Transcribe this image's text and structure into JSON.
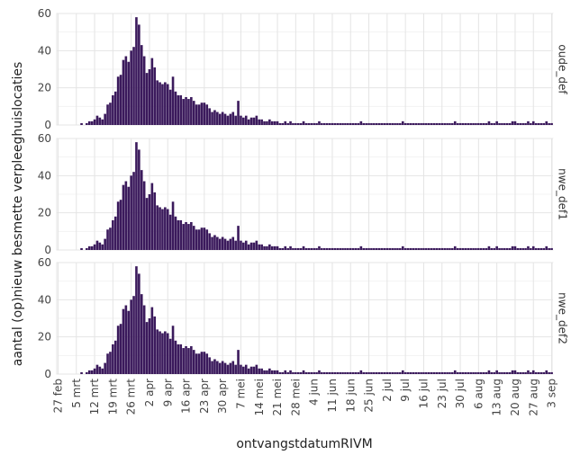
{
  "chart_data": {
    "type": "bar",
    "title": "",
    "xlabel": "ontvangstdatumRIVM",
    "ylabel": "aantal (op)nieuw besmette verpleeghuislocaties",
    "ylim": [
      0,
      60
    ],
    "yticks": [
      "0",
      "20",
      "40",
      "60"
    ],
    "x_start": "2020-02-27",
    "x_end": "2020-09-03",
    "xtick_labels": [
      "27 feb",
      "5 mrt",
      "12 mrt",
      "19 mrt",
      "26 mrt",
      "2 apr",
      "9 apr",
      "16 apr",
      "23 apr",
      "30 apr",
      "7 mei",
      "14 mei",
      "21 mei",
      "28 mei",
      "4 jun",
      "11 jun",
      "18 jun",
      "25 jun",
      "2 jul",
      "9 jul",
      "16 jul",
      "23 jul",
      "30 jul",
      "6 aug",
      "13 aug",
      "20 aug",
      "27 aug",
      "3 sep"
    ],
    "bar_color": "#3b1a5c",
    "grid": true,
    "panels": [
      {
        "name": "oude_def",
        "values": [
          0,
          0,
          0,
          0,
          0,
          0,
          0,
          0,
          0,
          1,
          0,
          1,
          2,
          2,
          3,
          5,
          4,
          3,
          6,
          11,
          12,
          16,
          18,
          26,
          27,
          35,
          37,
          34,
          40,
          42,
          58,
          54,
          43,
          37,
          28,
          30,
          36,
          31,
          24,
          23,
          22,
          23,
          22,
          19,
          26,
          18,
          16,
          16,
          14,
          15,
          14,
          15,
          13,
          11,
          11,
          12,
          12,
          11,
          9,
          7,
          8,
          7,
          6,
          7,
          6,
          5,
          6,
          7,
          5,
          13,
          5,
          4,
          5,
          3,
          4,
          4,
          5,
          3,
          3,
          2,
          2,
          3,
          2,
          2,
          2,
          1,
          1,
          2,
          1,
          2,
          1,
          1,
          1,
          1,
          2,
          1,
          1,
          1,
          1,
          1,
          2,
          1,
          1,
          1,
          1,
          1,
          1,
          1,
          1,
          1,
          1,
          1,
          1,
          1,
          1,
          1,
          2,
          1,
          1,
          1,
          1,
          1,
          1,
          1,
          1,
          1,
          1,
          1,
          1,
          1,
          1,
          1,
          2,
          1,
          1,
          1,
          1,
          1,
          1,
          1,
          1,
          1,
          1,
          1,
          1,
          1,
          1,
          1,
          1,
          1,
          1,
          1,
          2,
          1,
          1,
          1,
          1,
          1,
          1,
          1,
          1,
          1,
          1,
          1,
          1,
          2,
          1,
          1,
          2,
          1,
          1,
          1,
          1,
          1,
          2,
          2,
          1,
          1,
          1,
          1,
          2,
          1,
          2,
          1,
          1,
          1,
          1,
          2,
          1,
          1,
          1,
          1,
          2,
          1,
          1
        ]
      },
      {
        "name": "nwe_def1",
        "values": [
          0,
          0,
          0,
          0,
          0,
          0,
          0,
          0,
          0,
          1,
          0,
          1,
          2,
          2,
          3,
          5,
          4,
          3,
          6,
          11,
          12,
          16,
          18,
          26,
          27,
          35,
          37,
          34,
          40,
          42,
          58,
          54,
          43,
          37,
          28,
          30,
          36,
          31,
          24,
          23,
          22,
          23,
          22,
          19,
          26,
          18,
          16,
          16,
          14,
          15,
          14,
          15,
          13,
          11,
          11,
          12,
          12,
          11,
          9,
          7,
          8,
          7,
          6,
          7,
          6,
          5,
          6,
          7,
          5,
          13,
          5,
          4,
          5,
          3,
          4,
          4,
          5,
          3,
          3,
          2,
          2,
          3,
          2,
          2,
          2,
          1,
          1,
          2,
          1,
          2,
          1,
          1,
          1,
          1,
          2,
          1,
          1,
          1,
          1,
          1,
          2,
          1,
          1,
          1,
          1,
          1,
          1,
          1,
          1,
          1,
          1,
          1,
          1,
          1,
          1,
          1,
          2,
          1,
          1,
          1,
          1,
          1,
          1,
          1,
          1,
          1,
          1,
          1,
          1,
          1,
          1,
          1,
          2,
          1,
          1,
          1,
          1,
          1,
          1,
          1,
          1,
          1,
          1,
          1,
          1,
          1,
          1,
          1,
          1,
          1,
          1,
          1,
          2,
          1,
          1,
          1,
          1,
          1,
          1,
          1,
          1,
          1,
          1,
          1,
          1,
          2,
          1,
          1,
          2,
          1,
          1,
          1,
          1,
          1,
          2,
          2,
          1,
          1,
          1,
          1,
          2,
          1,
          2,
          1,
          1,
          1,
          1,
          2,
          1,
          1,
          1,
          1,
          4,
          1,
          1
        ]
      },
      {
        "name": "nwe_def2",
        "values": [
          0,
          0,
          0,
          0,
          0,
          0,
          0,
          0,
          0,
          1,
          0,
          1,
          2,
          2,
          3,
          5,
          4,
          3,
          6,
          11,
          12,
          16,
          18,
          26,
          27,
          35,
          37,
          34,
          40,
          42,
          58,
          54,
          43,
          37,
          28,
          30,
          36,
          31,
          24,
          23,
          22,
          23,
          22,
          19,
          26,
          18,
          16,
          16,
          14,
          15,
          14,
          15,
          13,
          11,
          11,
          12,
          12,
          11,
          9,
          7,
          8,
          7,
          6,
          7,
          6,
          5,
          6,
          7,
          5,
          13,
          5,
          4,
          5,
          3,
          4,
          4,
          5,
          3,
          3,
          2,
          2,
          3,
          2,
          2,
          2,
          1,
          1,
          2,
          1,
          2,
          1,
          1,
          1,
          1,
          2,
          1,
          1,
          1,
          1,
          1,
          2,
          1,
          1,
          1,
          1,
          1,
          1,
          1,
          1,
          1,
          1,
          1,
          1,
          1,
          1,
          1,
          2,
          1,
          1,
          1,
          1,
          1,
          1,
          1,
          1,
          1,
          1,
          1,
          1,
          1,
          1,
          1,
          2,
          1,
          1,
          1,
          1,
          1,
          1,
          1,
          1,
          1,
          1,
          1,
          1,
          1,
          1,
          1,
          1,
          1,
          1,
          1,
          2,
          1,
          1,
          1,
          1,
          1,
          1,
          1,
          1,
          1,
          1,
          1,
          1,
          2,
          1,
          1,
          2,
          1,
          1,
          1,
          1,
          1,
          2,
          2,
          1,
          1,
          1,
          1,
          2,
          1,
          2,
          1,
          1,
          1,
          1,
          2,
          1,
          1,
          1,
          1,
          2,
          1,
          1
        ]
      }
    ]
  }
}
